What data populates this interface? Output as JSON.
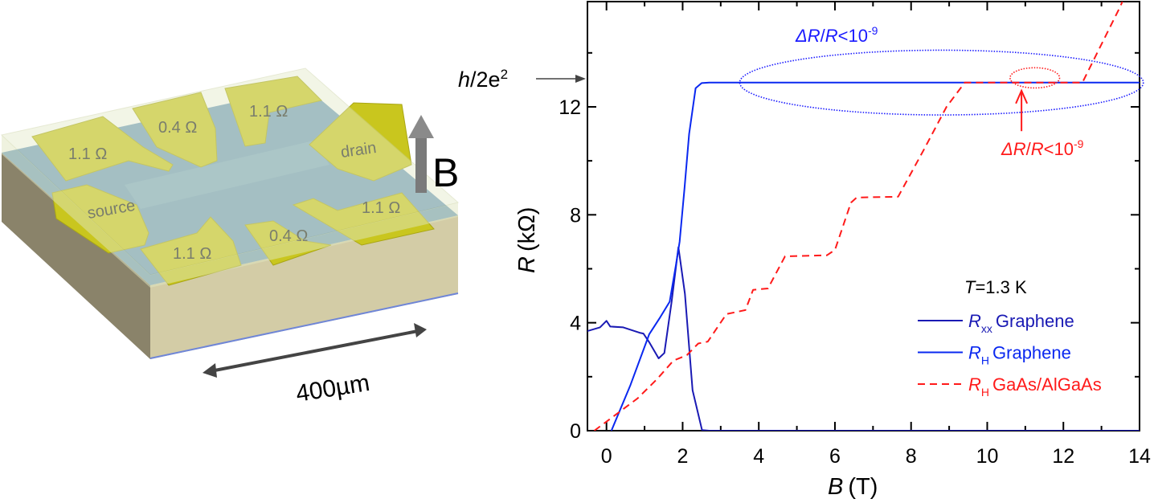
{
  "illustration": {
    "pads": [
      {
        "label": "1.1 Ω"
      },
      {
        "label": "0.4 Ω"
      },
      {
        "label": "1.1 Ω"
      },
      {
        "label": "drain"
      },
      {
        "label": "source"
      },
      {
        "label": "1.1 Ω"
      },
      {
        "label": "0.4 Ω"
      },
      {
        "label": "1.1 Ω"
      }
    ],
    "field_label": "B",
    "scale_label": "400µm",
    "colors": {
      "pad": "#c9c61e",
      "graphene": "#6f9cc0",
      "substrate_front": "#d3cca6",
      "substrate_side": "#8a836a",
      "glass": "#e4ebc8"
    }
  },
  "chart_data": {
    "type": "line",
    "xlabel": {
      "symbol": "B",
      "unit": "(T)"
    },
    "ylabel": {
      "symbol": "R",
      "unit": "(kΩ)"
    },
    "xlim": [
      -0.5,
      14
    ],
    "ylim": [
      0,
      15.9
    ],
    "xticks": [
      0,
      2,
      4,
      6,
      8,
      10,
      12,
      14
    ],
    "yticks": [
      0,
      4,
      8,
      12
    ],
    "grid": false,
    "legend_position": "bottom-right",
    "legend_title": {
      "symbol": "T",
      "text": "=1.3 K"
    },
    "series": [
      {
        "name": "Graphene",
        "symbol": "R",
        "subscript": "xx",
        "color": "#1a1ab4",
        "style": "solid",
        "points": [
          [
            -0.53,
            3.68
          ],
          [
            -0.17,
            3.83
          ],
          [
            0,
            4.07
          ],
          [
            0.1,
            3.86
          ],
          [
            0.44,
            3.83
          ],
          [
            0.87,
            3.63
          ],
          [
            0.97,
            3.6
          ],
          [
            1.12,
            3.28
          ],
          [
            1.37,
            2.68
          ],
          [
            1.52,
            2.88
          ],
          [
            1.71,
            4.77
          ],
          [
            1.89,
            6.8
          ],
          [
            2.06,
            5.07
          ],
          [
            2.26,
            1.5
          ],
          [
            2.51,
            0.02
          ],
          [
            2.7,
            0
          ],
          [
            14,
            0
          ]
        ]
      },
      {
        "name": "Graphene",
        "symbol": "R",
        "subscript": "H",
        "color": "#0a28f0",
        "style": "solid",
        "points": [
          [
            0.13,
            0
          ],
          [
            0.63,
            1.69
          ],
          [
            1.12,
            3.57
          ],
          [
            1.41,
            4.2
          ],
          [
            1.66,
            4.78
          ],
          [
            1.82,
            6.1
          ],
          [
            1.92,
            7.0
          ],
          [
            2.05,
            8.99
          ],
          [
            2.17,
            10.99
          ],
          [
            2.34,
            12.69
          ],
          [
            2.5,
            12.88
          ],
          [
            2.7,
            12.9
          ],
          [
            14,
            12.9
          ]
        ]
      },
      {
        "name": "GaAs/AlGaAs",
        "symbol": "R",
        "subscript": "H",
        "color": "#ff1a1a",
        "style": "dashed",
        "points": [
          [
            -0.32,
            0
          ],
          [
            0.82,
            1.2
          ],
          [
            1.32,
            1.9
          ],
          [
            1.76,
            2.6
          ],
          [
            2.11,
            2.8
          ],
          [
            2.41,
            3.23
          ],
          [
            2.66,
            3.3
          ],
          [
            3.15,
            4.32
          ],
          [
            3.65,
            4.47
          ],
          [
            3.85,
            5.22
          ],
          [
            4.24,
            5.27
          ],
          [
            4.69,
            6.46
          ],
          [
            5.79,
            6.5
          ],
          [
            6.0,
            6.7
          ],
          [
            6.42,
            8.45
          ],
          [
            6.57,
            8.64
          ],
          [
            7.66,
            8.67
          ],
          [
            8.33,
            10.4
          ],
          [
            8.93,
            12.0
          ],
          [
            9.41,
            12.9
          ],
          [
            12.5,
            12.9
          ],
          [
            13.47,
            15.65
          ],
          [
            13.55,
            15.9
          ]
        ]
      }
    ],
    "annotations": {
      "quantum_resistance": {
        "symbol": "h",
        "text": "/2e",
        "superscript": "2",
        "value": 12.906
      },
      "graphene_precision": {
        "text_a": "ΔR",
        "text_b": "/",
        "text_c": "R",
        "text_d": "<10",
        "superscript": "-9",
        "color": "#1a1aff"
      },
      "gaas_precision": {
        "text_a": "ΔR",
        "text_b": "/",
        "text_c": "R",
        "text_d": "<10",
        "superscript": "-9",
        "color": "#ff1a1a"
      }
    }
  }
}
